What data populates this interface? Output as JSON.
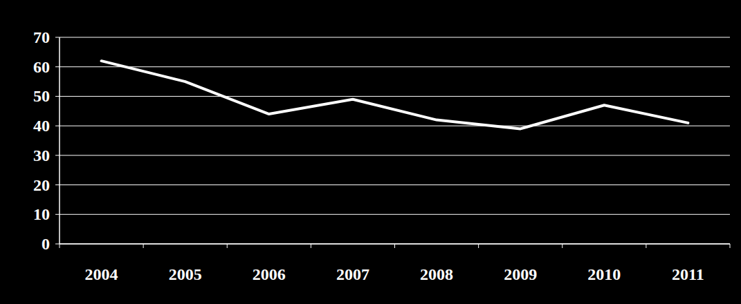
{
  "chart_data": {
    "type": "line",
    "categories": [
      "2004",
      "2005",
      "2006",
      "2007",
      "2008",
      "2009",
      "2010",
      "2011"
    ],
    "values": [
      62,
      55,
      44,
      49,
      42,
      39,
      47,
      41
    ],
    "color": "#ffffff",
    "ylim": [
      0,
      70
    ],
    "yticks": [
      0,
      10,
      20,
      30,
      40,
      50,
      60,
      70
    ],
    "grid": true
  }
}
